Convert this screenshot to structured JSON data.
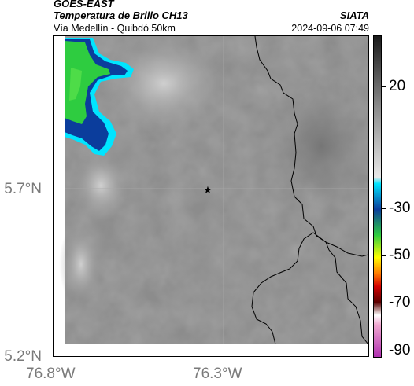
{
  "header": {
    "satellite": "GOES-EAST",
    "product": "Temperatura de Brillo CH13",
    "location": "Vía Medellín - Quibdó 50km",
    "organization": "SIATA",
    "timestamp": "2024-09-06 07:49"
  },
  "axes": {
    "latitude_ticks": [
      "5.7°N",
      "5.2°N"
    ],
    "longitude_ticks": [
      "76.8°W",
      "76.3°W"
    ]
  },
  "colorbar": {
    "ticks": [
      "20",
      "-30",
      "-50",
      "-70",
      "-90"
    ],
    "colors": {
      "gray_top": "#1a1a1a",
      "gray_mid": "#8a8a8a",
      "gray_light": "#e8e8e8",
      "cyan": "#00e5ff",
      "blue": "#0b3d9c",
      "green": "#2ecc40",
      "yellow": "#ffff00",
      "orange": "#ff7a00",
      "red": "#d40000",
      "dark_red": "#5a0000",
      "pink": "#f0a8d0",
      "magenta": "#b030b0"
    }
  },
  "map": {
    "center_marker_icon": "star-icon",
    "background_color": "#8c8c8c",
    "boundary_color": "#000000"
  }
}
